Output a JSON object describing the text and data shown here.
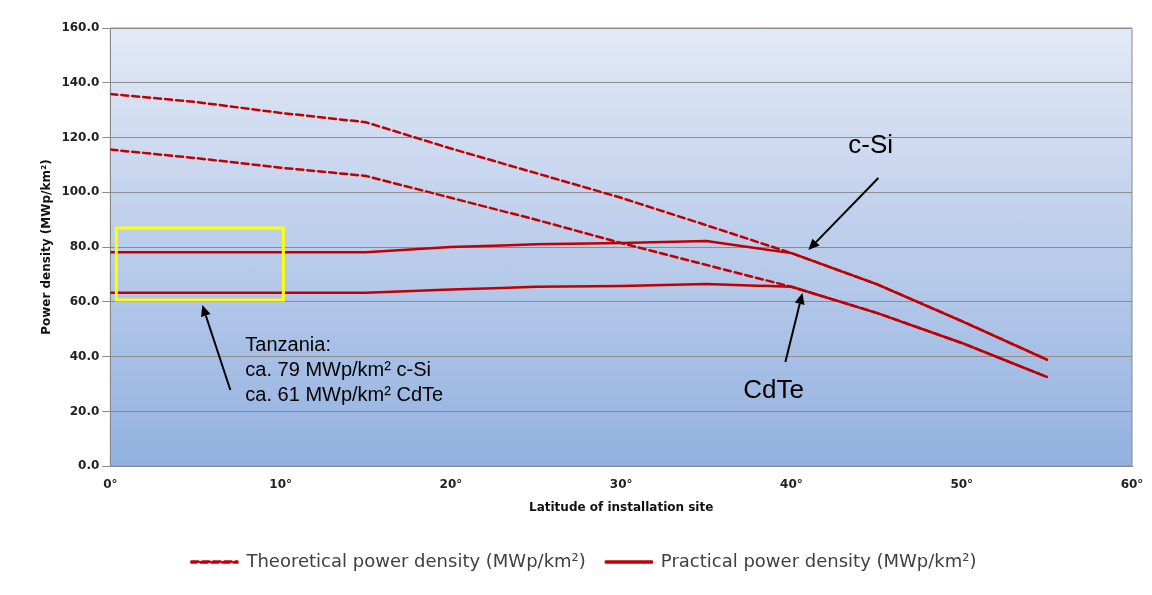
{
  "chart_data": {
    "type": "line",
    "xlabel": "Latitude of installation site",
    "ylabel": "Power density (MWp/km²)",
    "x": [
      0,
      5,
      10,
      15,
      20,
      25,
      30,
      35,
      40,
      45,
      50,
      55
    ],
    "series": [
      {
        "name": "Theoretical power density (MWp/km²)",
        "color": "#c00000",
        "line_style": "dashed",
        "values": [
          135.9,
          133,
          129,
          125.6,
          116,
          107,
          98,
          88,
          77.8,
          66.5,
          53,
          38.9
        ]
      },
      {
        "color": "#c00000",
        "line_style": "dashed",
        "values": [
          115.6,
          112.5,
          109,
          106,
          98,
          90,
          81.5,
          73.5,
          65.5,
          56,
          45,
          32.6
        ]
      },
      {
        "name": "Practical power density (MWp/km²)",
        "color": "#c00000",
        "line_style": "solid",
        "values": [
          78.1,
          78.1,
          78.1,
          78.1,
          80,
          81,
          81.5,
          82.2,
          77.8,
          66.5,
          53,
          38.9
        ]
      },
      {
        "color": "#c00000",
        "line_style": "solid",
        "values": [
          63.3,
          63.3,
          63.3,
          63.3,
          64.5,
          65.5,
          65.8,
          66.5,
          65.5,
          56,
          45,
          32.6
        ]
      }
    ],
    "xlim": [
      0,
      60
    ],
    "xticks": [
      {
        "value": 0,
        "label": "0°"
      },
      {
        "value": 10,
        "label": "10°"
      },
      {
        "value": 20,
        "label": "20°"
      },
      {
        "value": 30,
        "label": "30°"
      },
      {
        "value": 40,
        "label": "40°"
      },
      {
        "value": 50,
        "label": "50°"
      },
      {
        "value": 60,
        "label": "60°"
      }
    ],
    "ylim": [
      0,
      160
    ],
    "yticks": [
      {
        "value": 0,
        "label": "0.0"
      },
      {
        "value": 20,
        "label": "20.0"
      },
      {
        "value": 40,
        "label": "40.0"
      },
      {
        "value": 60,
        "label": "60.0"
      },
      {
        "value": 80,
        "label": "80.0"
      },
      {
        "value": 100,
        "label": "100.0"
      },
      {
        "value": 120,
        "label": "120.0"
      },
      {
        "value": 140,
        "label": "140.0"
      },
      {
        "value": 160,
        "label": "160.0"
      }
    ],
    "grid": "y",
    "legend": "bottom",
    "marker": "none",
    "annotations": [
      "Tanzania:\nca. 79 MWp/km² c-Si\nca. 61 MWp/km² CdTe",
      "c-Si",
      "CdTe"
    ]
  }
}
